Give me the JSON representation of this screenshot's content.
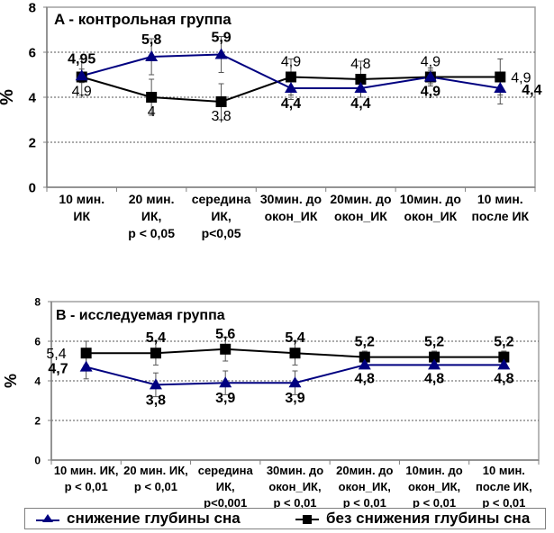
{
  "chart_data": [
    {
      "type": "line",
      "title": "A - контрольная группа",
      "ylabel": "%",
      "xlabel": "",
      "ylim": [
        0,
        8
      ],
      "yticks": [
        0,
        2,
        4,
        6,
        8
      ],
      "grid": "horizontal dotted",
      "categories": [
        [
          "10 мин.",
          "ИК"
        ],
        [
          "20 мин.",
          "ИК,",
          "p < 0,05"
        ],
        [
          "середина",
          "ИК,",
          "p<0,05"
        ],
        [
          "30мин. до",
          "окон_ИК"
        ],
        [
          "20мин. до",
          "окон_ИК"
        ],
        [
          "10мин. до",
          "окон_ИК"
        ],
        [
          "10 мин.",
          "после ИК"
        ]
      ],
      "series": [
        {
          "name": "снижение глубины сна",
          "marker": "triangle",
          "color": "#000080",
          "values": [
            4.95,
            5.8,
            5.9,
            4.4,
            4.4,
            4.9,
            4.4
          ],
          "labels": [
            "4,95",
            "5,8",
            "5,9",
            "4,4",
            "4,4",
            "4,9",
            "4,4"
          ],
          "error": [
            0.3,
            0.8,
            0.8,
            0.5,
            0.4,
            0.3,
            0.7
          ]
        },
        {
          "name": "без снижения глубины сна",
          "marker": "square",
          "color": "#000000",
          "values": [
            4.9,
            4.0,
            3.8,
            4.9,
            4.8,
            4.9,
            4.9
          ],
          "labels": [
            "4,9",
            "4",
            "3,8",
            "4,9",
            "4,8",
            "4,9",
            "4,9"
          ],
          "error": [
            0.8,
            0.8,
            0.8,
            0.8,
            0.8,
            0.4,
            0.8
          ]
        }
      ]
    },
    {
      "type": "line",
      "title": "B - исследуемая группа",
      "ylabel": "%",
      "xlabel": "",
      "ylim": [
        0,
        8
      ],
      "yticks": [
        0,
        2,
        4,
        6,
        8
      ],
      "grid": "horizontal dotted",
      "categories": [
        [
          "10 мин. ИК,",
          "p < 0,01"
        ],
        [
          "20 мин. ИК,",
          "p < 0,01"
        ],
        [
          "середина",
          "ИК,",
          "p<0,001"
        ],
        [
          "30мин. до",
          "окон_ИК,",
          "p < 0,01"
        ],
        [
          "20мин. до",
          "окон_ИК,",
          "p < 0,01"
        ],
        [
          "10мин. до",
          "окон_ИК,",
          "p < 0,01"
        ],
        [
          "10 мин.",
          "после ИК,",
          "p < 0,01"
        ]
      ],
      "series": [
        {
          "name": "снижение глубины сна",
          "marker": "triangle",
          "color": "#000080",
          "values": [
            4.7,
            3.8,
            3.9,
            3.9,
            4.8,
            4.8,
            4.8
          ],
          "labels": [
            "4,7",
            "3,8",
            "3,9",
            "3,9",
            "4,8",
            "4,8",
            "4,8"
          ],
          "error": [
            0.6,
            0.6,
            0.6,
            0.6,
            0.1,
            0.1,
            0.1
          ]
        },
        {
          "name": "без снижения глубины сна",
          "marker": "square",
          "color": "#000000",
          "values": [
            5.4,
            5.4,
            5.6,
            5.4,
            5.2,
            5.2,
            5.2
          ],
          "labels": [
            "5,4",
            "5,4",
            "5,6",
            "5,4",
            "5,2",
            "5,2",
            "5,2"
          ],
          "error": [
            0.6,
            0.6,
            0.6,
            0.6,
            0.3,
            0.3,
            0.3
          ]
        }
      ]
    }
  ],
  "legend": {
    "placement": "bottom",
    "items": [
      {
        "label": "снижение глубины сна",
        "marker": "triangle",
        "color": "#000080"
      },
      {
        "label": "без снижения глубины сна",
        "marker": "square",
        "color": "#000000"
      }
    ]
  }
}
